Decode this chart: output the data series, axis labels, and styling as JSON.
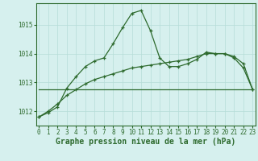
{
  "x": [
    0,
    1,
    2,
    3,
    4,
    5,
    6,
    7,
    8,
    9,
    10,
    11,
    12,
    13,
    14,
    15,
    16,
    17,
    18,
    19,
    20,
    21,
    22,
    23
  ],
  "line1": [
    1011.8,
    1011.95,
    1012.15,
    1012.8,
    1013.2,
    1013.55,
    1013.75,
    1013.85,
    1014.35,
    1014.9,
    1015.4,
    1015.5,
    1014.8,
    1013.85,
    1013.55,
    1013.55,
    1013.65,
    1013.8,
    1014.05,
    1014.0,
    1014.0,
    1013.85,
    1013.5,
    1012.75
  ],
  "line2": [
    1011.8,
    1012.0,
    1012.25,
    1012.55,
    1012.75,
    1012.95,
    1013.1,
    1013.2,
    1013.3,
    1013.4,
    1013.5,
    1013.55,
    1013.6,
    1013.65,
    1013.7,
    1013.75,
    1013.8,
    1013.9,
    1014.0,
    1014.0,
    1014.0,
    1013.9,
    1013.65,
    1012.75
  ],
  "line3": [
    1012.75,
    1012.75,
    1012.75,
    1012.75,
    1012.75,
    1012.75,
    1012.75,
    1012.75,
    1012.75,
    1012.75,
    1012.75,
    1012.75,
    1012.75,
    1012.75,
    1012.75,
    1012.75,
    1012.75,
    1012.75,
    1012.75,
    1012.75,
    1012.75,
    1012.75,
    1012.75,
    1012.75
  ],
  "line_color": "#2d6a2d",
  "background_color": "#d6f0ee",
  "grid_color": "#b5ddd8",
  "ylim": [
    1011.5,
    1015.75
  ],
  "yticks": [
    1012,
    1013,
    1014,
    1015
  ],
  "xticks": [
    0,
    1,
    2,
    3,
    4,
    5,
    6,
    7,
    8,
    9,
    10,
    11,
    12,
    13,
    14,
    15,
    16,
    17,
    18,
    19,
    20,
    21,
    22,
    23
  ],
  "xlabel": "Graphe pression niveau de la mer (hPa)",
  "marker": "+",
  "marker_size": 3.5,
  "line_width": 0.9,
  "tick_fontsize": 5.5,
  "xlabel_fontsize": 7.0
}
